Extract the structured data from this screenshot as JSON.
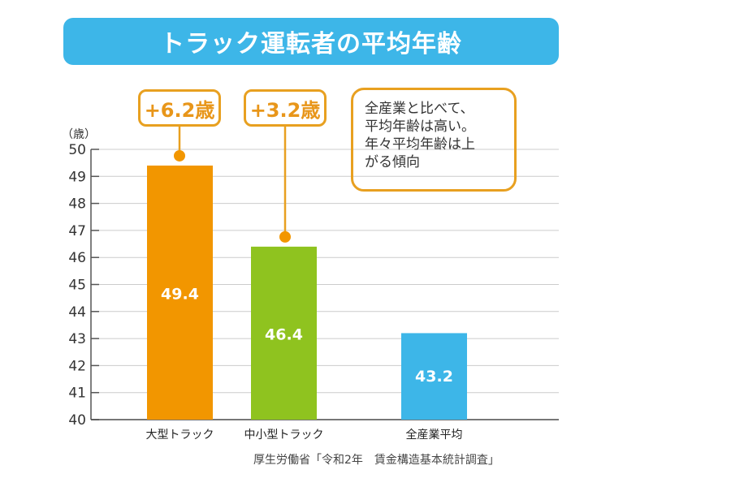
{
  "chart_data": {
    "type": "bar",
    "title": "トラック運転者の平均年齢",
    "ylabel": "（歳）",
    "ylim": [
      40,
      50
    ],
    "yticks": [
      40,
      41,
      42,
      43,
      44,
      45,
      46,
      47,
      48,
      49,
      50
    ],
    "grid": true,
    "categories": [
      "大型トラック",
      "中小型トラック",
      "全産業平均"
    ],
    "values": [
      49.4,
      46.4,
      43.2
    ],
    "value_labels": [
      "49.4",
      "46.4",
      "43.2"
    ],
    "colors": [
      "#f29600",
      "#8fc31f",
      "#3db6e8"
    ],
    "annotations": [
      "+6.2歳",
      "+3.2歳"
    ],
    "note": "全産業と比べて、\n平均年齢は高い。\n年々平均年齢は上\nがる傾向",
    "source": "厚生労働省「令和2年　賃金構造基本統計調査」"
  }
}
